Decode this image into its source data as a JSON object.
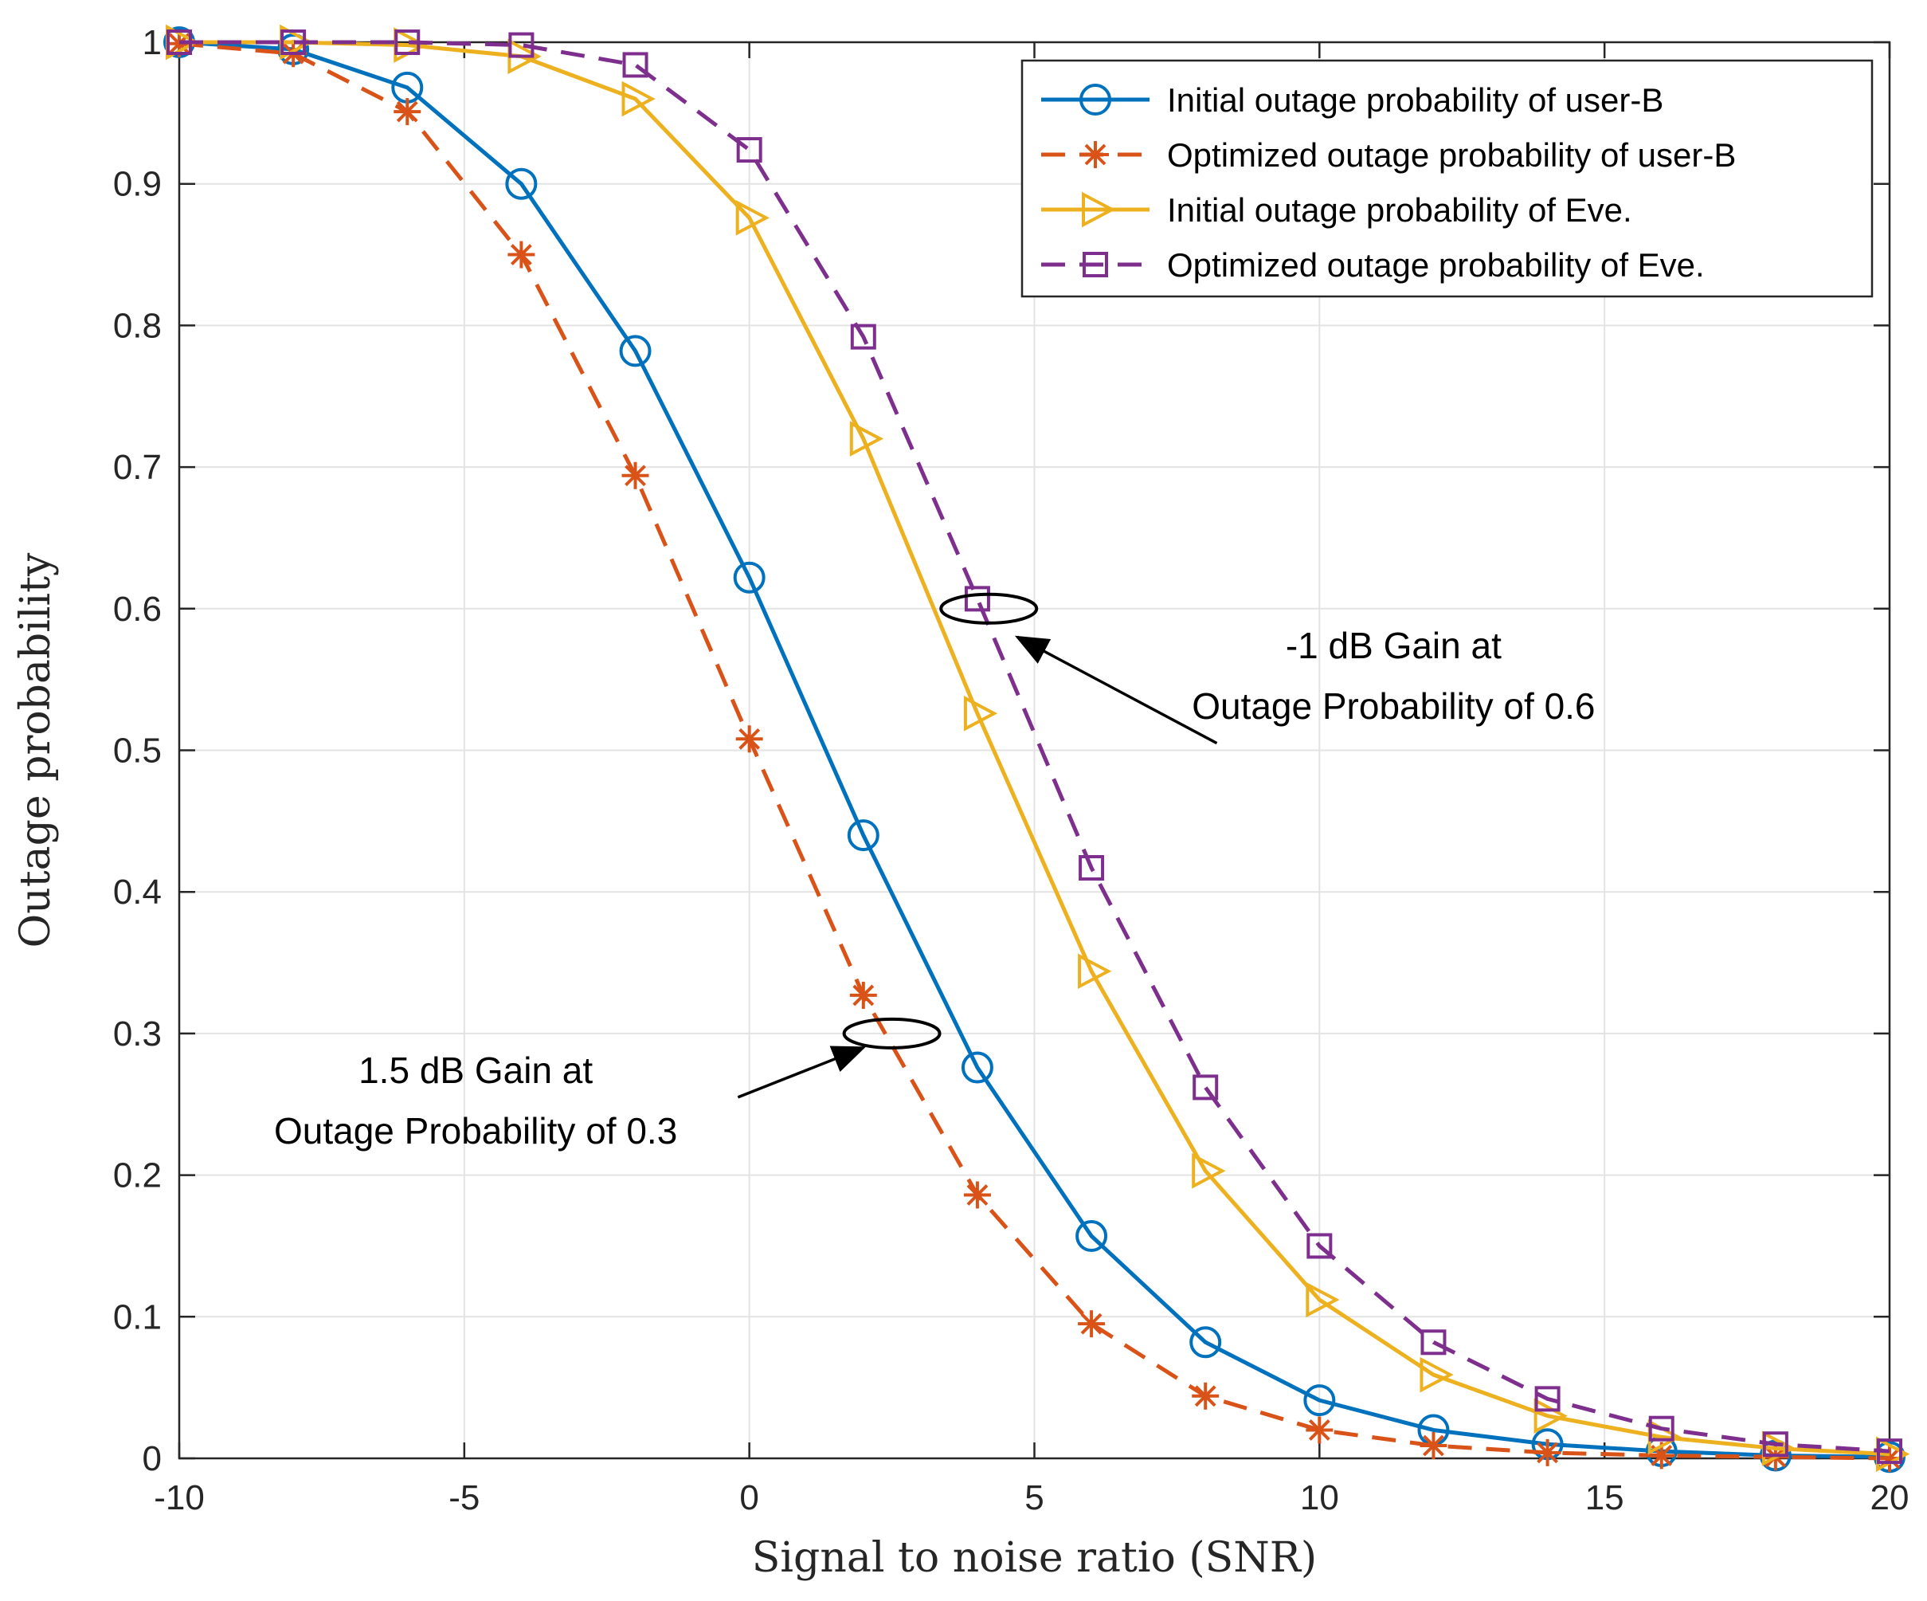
{
  "chart_data": {
    "type": "line",
    "title": "",
    "xlabel": "Signal to noise ratio (SNR)",
    "ylabel": "Outage probability",
    "xlim": [
      -10,
      20
    ],
    "ylim": [
      0,
      1
    ],
    "xticks": [
      -10,
      -5,
      0,
      5,
      10,
      15,
      20
    ],
    "xtick_labels": [
      "-10",
      "-5",
      "0",
      "5",
      "10",
      "15",
      "20"
    ],
    "yticks": [
      0,
      0.1,
      0.2,
      0.3,
      0.4,
      0.5,
      0.6,
      0.7,
      0.8,
      0.9,
      1
    ],
    "ytick_labels": [
      "0",
      "0.1",
      "0.2",
      "0.3",
      "0.4",
      "0.5",
      "0.6",
      "0.7",
      "0.8",
      "0.9",
      "1"
    ],
    "grid": true,
    "legend_position": "top-right",
    "x": [
      -10,
      -8,
      -6,
      -4,
      -2,
      0,
      2,
      4,
      6,
      8,
      10,
      12,
      14,
      16,
      18,
      20
    ],
    "series": [
      {
        "name": "Initial outage probability of user-B",
        "color": "#0072BD",
        "line_style": "solid",
        "marker": "circle",
        "values": [
          1.0,
          0.995,
          0.968,
          0.9,
          0.782,
          0.622,
          0.44,
          0.276,
          0.157,
          0.082,
          0.041,
          0.02,
          0.01,
          0.005,
          0.002,
          0.001
        ]
      },
      {
        "name": "Optimized outage probability of user-B",
        "color": "#D95319",
        "line_style": "dashed",
        "marker": "asterisk",
        "values": [
          0.999,
          0.992,
          0.951,
          0.85,
          0.694,
          0.508,
          0.327,
          0.186,
          0.095,
          0.044,
          0.02,
          0.009,
          0.004,
          0.002,
          0.001,
          0.0
        ]
      },
      {
        "name": "Initial outage probability of Eve.",
        "color": "#EDB120",
        "line_style": "solid",
        "marker": "triangle-right",
        "values": [
          1.0,
          1.0,
          0.998,
          0.99,
          0.96,
          0.876,
          0.72,
          0.526,
          0.344,
          0.203,
          0.112,
          0.059,
          0.03,
          0.015,
          0.007,
          0.003
        ]
      },
      {
        "name": "Optimized outage probability of Eve.",
        "color": "#7E2F8E",
        "line_style": "dashed",
        "marker": "square",
        "values": [
          1.0,
          1.0,
          1.0,
          0.998,
          0.984,
          0.924,
          0.792,
          0.607,
          0.417,
          0.262,
          0.15,
          0.082,
          0.042,
          0.021,
          0.01,
          0.005
        ]
      }
    ],
    "annotations": [
      {
        "name": "gain-at-0.6",
        "lines": [
          "-1 dB Gain at",
          "Outage Probability of 0.6"
        ],
        "ellipse_center": [
          4.2,
          0.6
        ],
        "arrow_tip": [
          4.7,
          0.58
        ],
        "arrow_tail": [
          8.2,
          0.505
        ],
        "text_anchor": [
          11.3,
          0.565
        ]
      },
      {
        "name": "gain-at-0.3",
        "lines": [
          "1.5 dB Gain at",
          "Outage Probability of 0.3"
        ],
        "ellipse_center": [
          2.5,
          0.3
        ],
        "arrow_tip": [
          2.0,
          0.29
        ],
        "arrow_tail": [
          -0.2,
          0.255
        ],
        "text_anchor": [
          -4.8,
          0.265
        ]
      }
    ]
  }
}
